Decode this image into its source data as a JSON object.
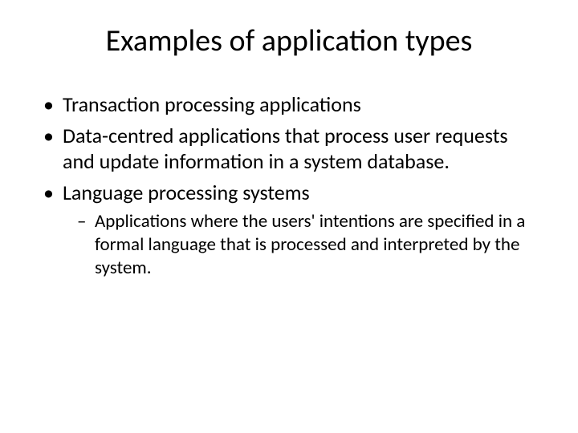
{
  "slide": {
    "title": "Examples of application types",
    "bullets": [
      {
        "text": "Transaction processing applications"
      },
      {
        "text": "Data-centred applications that process user requests and update information in a system database."
      },
      {
        "text": "Language processing systems",
        "sub": [
          {
            "text": "Applications where the users' intentions are specified in a formal language that is processed and interpreted by the system."
          }
        ]
      }
    ]
  },
  "style": {
    "background_color": "#ffffff",
    "text_color": "#000000",
    "title_fontsize": 38,
    "bullet_fontsize": 26,
    "subbullet_fontsize": 23,
    "font_family": "Calibri"
  }
}
